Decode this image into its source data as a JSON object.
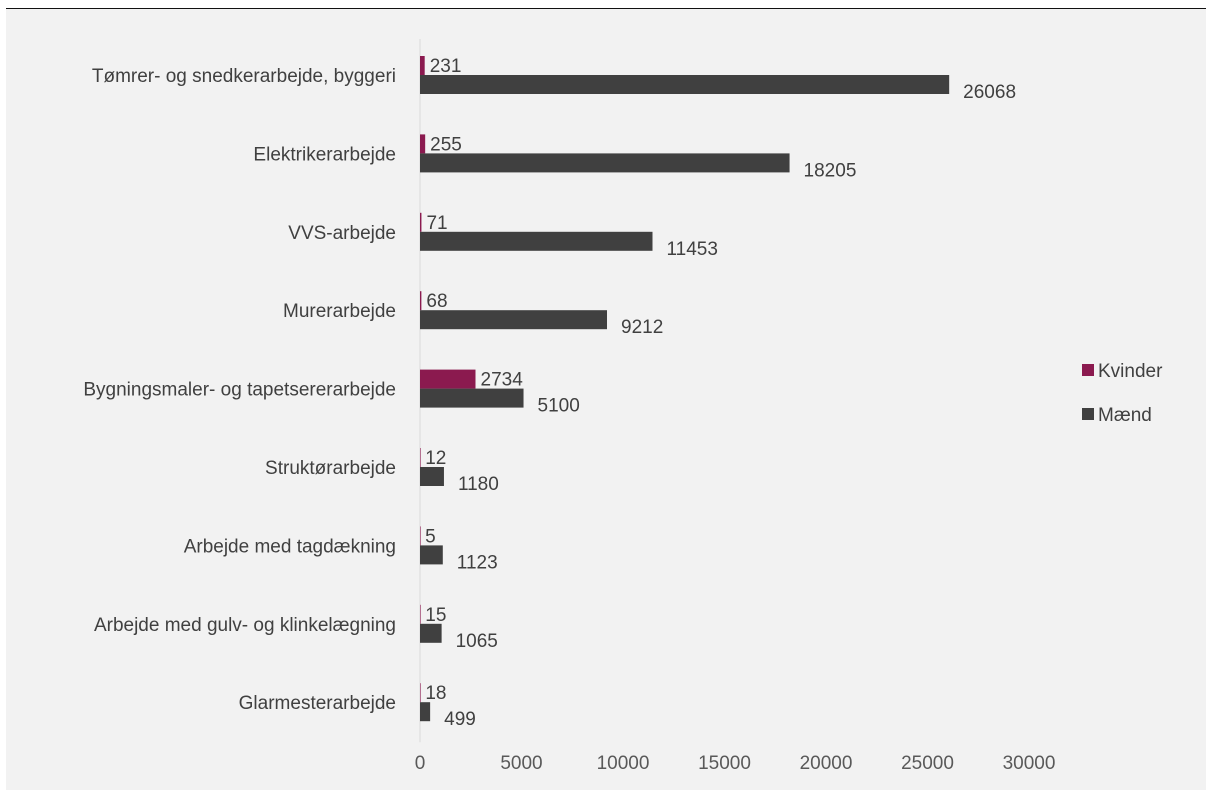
{
  "chart_data": {
    "type": "bar",
    "orientation": "horizontal",
    "title": "",
    "xlabel": "",
    "ylabel": "",
    "xlim": [
      0,
      30000
    ],
    "x_ticks": [
      "0",
      "5000",
      "10000",
      "15000",
      "20000",
      "25000",
      "30000"
    ],
    "grid": false,
    "legend_position": "right",
    "categories": [
      "Tømrer- og snedkerarbejde, byggeri",
      "Elektrikerarbejde",
      "VVS-arbejde",
      "Murerarbejde",
      "Bygningsmaler- og tapetsererarbejde",
      "Struktørarbejde",
      "Arbejde med tagdækning",
      "Arbejde med gulv- og klinkelægning",
      "Glarmesterarbejde"
    ],
    "series": [
      {
        "name": "Kvinder",
        "color": "#8b1a4f",
        "values": [
          231,
          255,
          71,
          68,
          2734,
          12,
          5,
          15,
          18
        ]
      },
      {
        "name": "Mænd",
        "color": "#404040",
        "values": [
          26068,
          18205,
          11453,
          9212,
          5100,
          1180,
          1123,
          1065,
          499
        ]
      }
    ]
  }
}
